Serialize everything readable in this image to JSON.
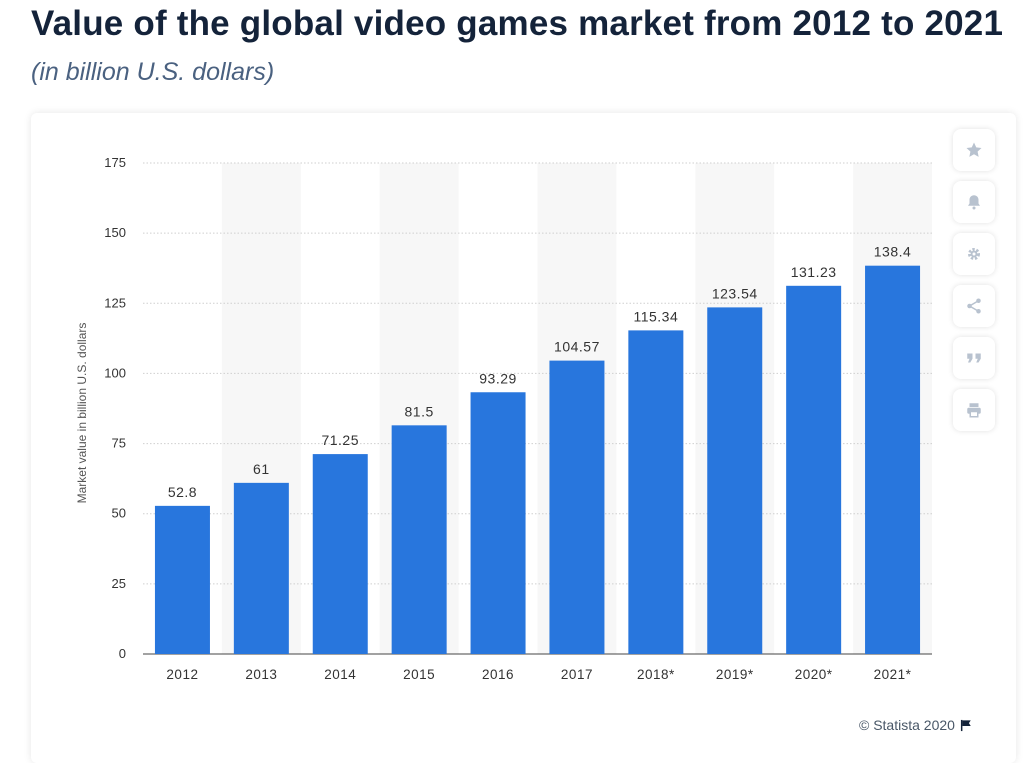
{
  "title": "Value of the global video games market from 2012 to 2021",
  "subtitle": "(in billion U.S. dollars)",
  "copyright": "© Statista 2020",
  "colors": {
    "bar": "#2876dd",
    "stripe": "#f7f7f7",
    "grid": "#cfcfcf",
    "axis_text": "#333333",
    "label_text": "#333333"
  },
  "toolbar": [
    {
      "name": "star-icon"
    },
    {
      "name": "bell-icon"
    },
    {
      "name": "gear-icon"
    },
    {
      "name": "share-icon"
    },
    {
      "name": "quote-icon"
    },
    {
      "name": "print-icon"
    }
  ],
  "chart_data": {
    "type": "bar",
    "title": "Value of the global video games market from 2012 to 2021",
    "subtitle": "(in billion U.S. dollars)",
    "ylabel": "Market value in billion U.S. dollars",
    "xlabel": "",
    "categories": [
      "2012",
      "2013",
      "2014",
      "2015",
      "2016",
      "2017",
      "2018*",
      "2019*",
      "2020*",
      "2021*"
    ],
    "values": [
      52.8,
      61,
      71.25,
      81.5,
      93.29,
      104.57,
      115.34,
      123.54,
      131.23,
      138.4
    ],
    "value_labels": [
      "52.8",
      "61",
      "71.25",
      "81.5",
      "93.29",
      "104.57",
      "115.34",
      "123.54",
      "131.23",
      "138.4"
    ],
    "ylim": [
      0,
      175
    ],
    "yticks": [
      0,
      25,
      50,
      75,
      100,
      125,
      150,
      175
    ],
    "grid": true,
    "legend": "none"
  }
}
